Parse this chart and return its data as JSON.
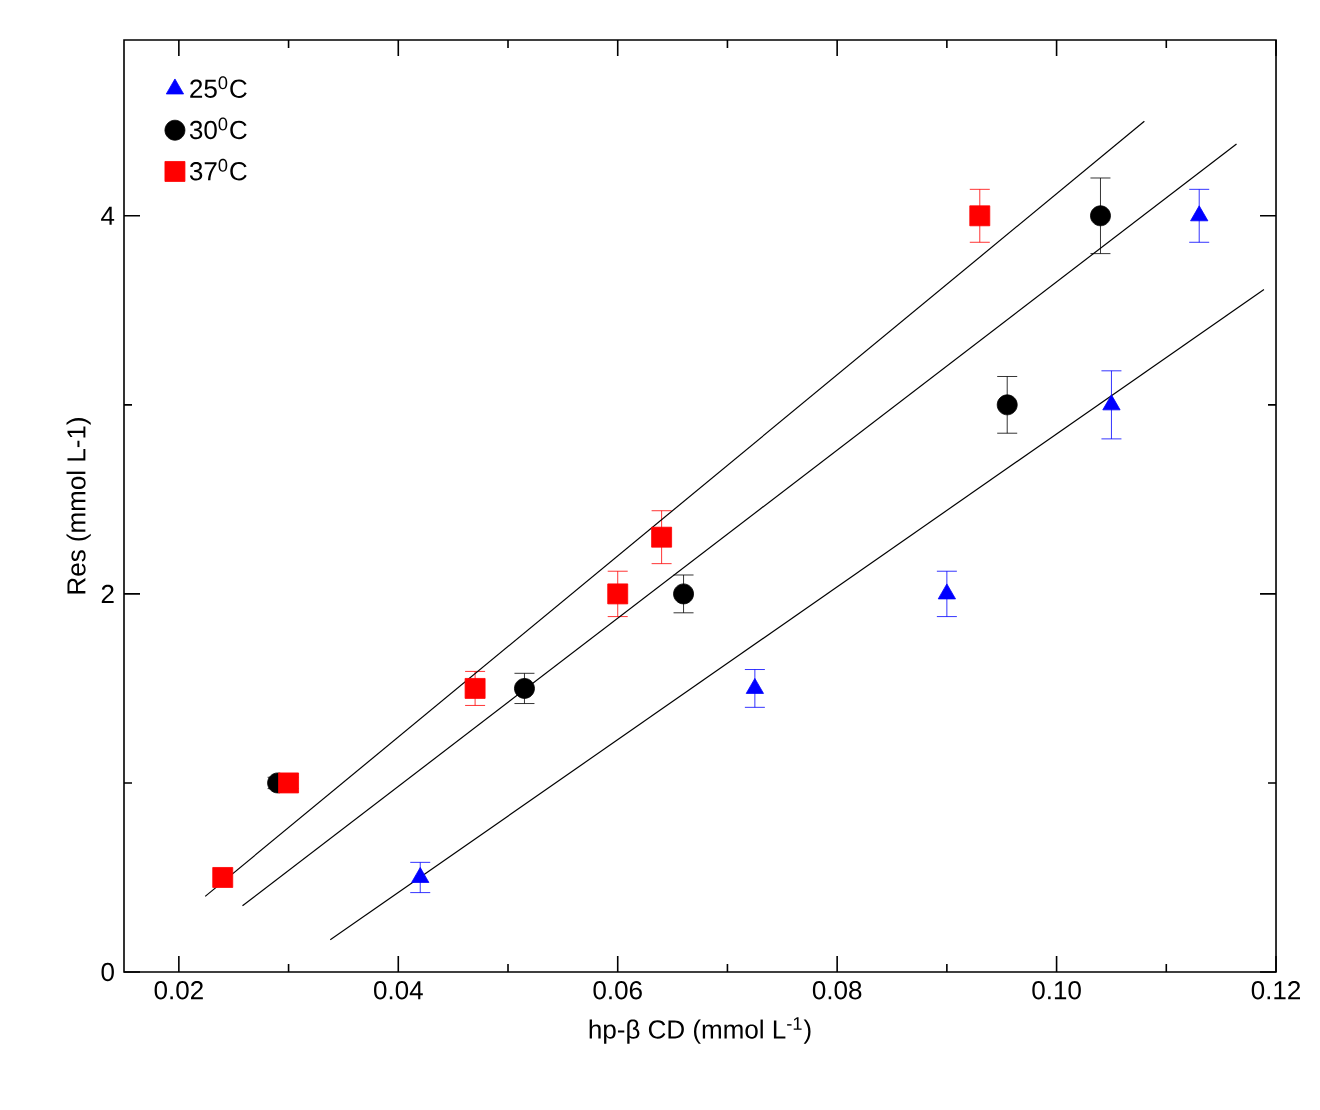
{
  "chart_data": {
    "type": "scatter",
    "xlabel": "hp-β CD (mmol L$^{-1}$)",
    "ylabel": "Res (mmol L-1)",
    "xlim": [
      0.015,
      0.12
    ],
    "ylim": [
      0,
      4.93
    ],
    "xticks": [
      0.02,
      0.04,
      0.06,
      0.08,
      {
        "value": 0.1,
        "label": "0.10"
      },
      0.12
    ],
    "yticks": [
      0,
      2,
      4
    ],
    "legend": "top left",
    "grid": false,
    "series": [
      {
        "name": "25$^{0}$C",
        "color": "#0000ff",
        "marker": "triangle",
        "x": [
          0.042,
          0.0725,
          0.09,
          0.105,
          0.113
        ],
        "values": [
          0.5,
          1.5,
          2.0,
          3.0,
          4.0
        ],
        "errors": [
          0.08,
          0.1,
          0.12,
          0.18,
          0.14
        ]
      },
      {
        "name": "30$^{0}$C",
        "color": "#000000",
        "marker": "circle",
        "x": [
          0.029,
          0.0515,
          0.066,
          0.0955,
          0.104
        ],
        "values": [
          1.0,
          1.5,
          2.0,
          3.0,
          4.0
        ],
        "errors": [
          0.03,
          0.08,
          0.1,
          0.15,
          0.2
        ]
      },
      {
        "name": "37$^{0}$C",
        "color": "#ff0000",
        "marker": "square",
        "x": [
          0.024,
          0.03,
          0.047,
          0.06,
          0.064,
          0.093
        ],
        "values": [
          0.5,
          1.0,
          1.5,
          2.0,
          2.3,
          4.0
        ],
        "errors": [
          null,
          0.03,
          0.09,
          0.12,
          0.14,
          0.14
        ]
      },
      {
        "type": "line",
        "color": "#000000",
        "marker": "none",
        "x": [
          0.0224,
          0.108
        ],
        "values": [
          0.4,
          4.5
        ]
      },
      {
        "type": "line",
        "color": "#000000",
        "marker": "none",
        "x": [
          0.0258,
          0.1164
        ],
        "values": [
          0.35,
          4.38
        ]
      },
      {
        "type": "line",
        "color": "#000000",
        "marker": "none",
        "x": [
          0.0338,
          0.1189
        ],
        "values": [
          0.17,
          3.61
        ]
      }
    ]
  }
}
